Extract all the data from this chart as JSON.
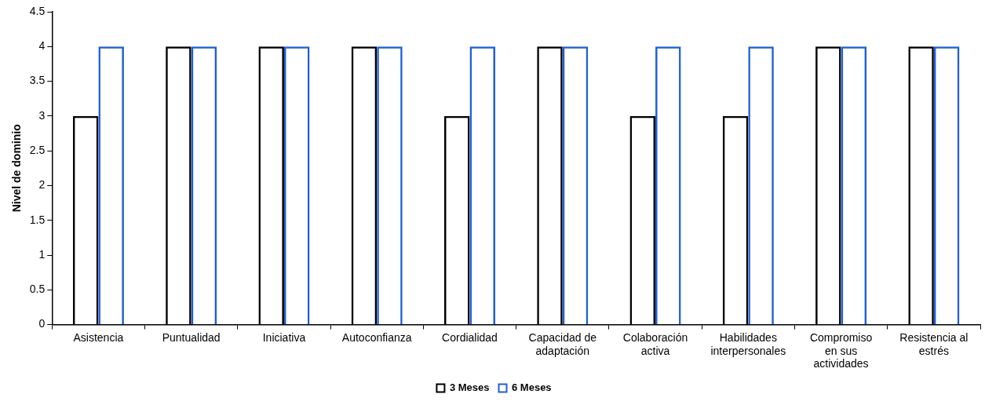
{
  "chart_data": {
    "type": "bar",
    "ylabel": "Nivel de dominio",
    "categories": [
      "Asistencia",
      "Puntualidad",
      "Iniciativa",
      "Autoconfianza",
      "Cordialidad",
      "Capacidad de adaptación",
      "Colaboración activa",
      "Habilidades interpersonales",
      "Compromiso en sus actividades",
      "Resistencia al estrés"
    ],
    "series": [
      {
        "name": "3 Meses",
        "color": "#000000",
        "values": [
          3,
          4,
          4,
          4,
          3,
          4,
          3,
          3,
          4,
          4
        ]
      },
      {
        "name": "6 Meses",
        "color": "#1f5fd6",
        "values": [
          4,
          4,
          4,
          4,
          4,
          4,
          4,
          4,
          4,
          4
        ]
      }
    ],
    "ylim": [
      0,
      4.5
    ],
    "yticks": [
      0,
      0.5,
      1,
      1.5,
      2,
      2.5,
      3,
      3.5,
      4,
      4.5
    ],
    "grid": false,
    "legend": "bottom"
  }
}
